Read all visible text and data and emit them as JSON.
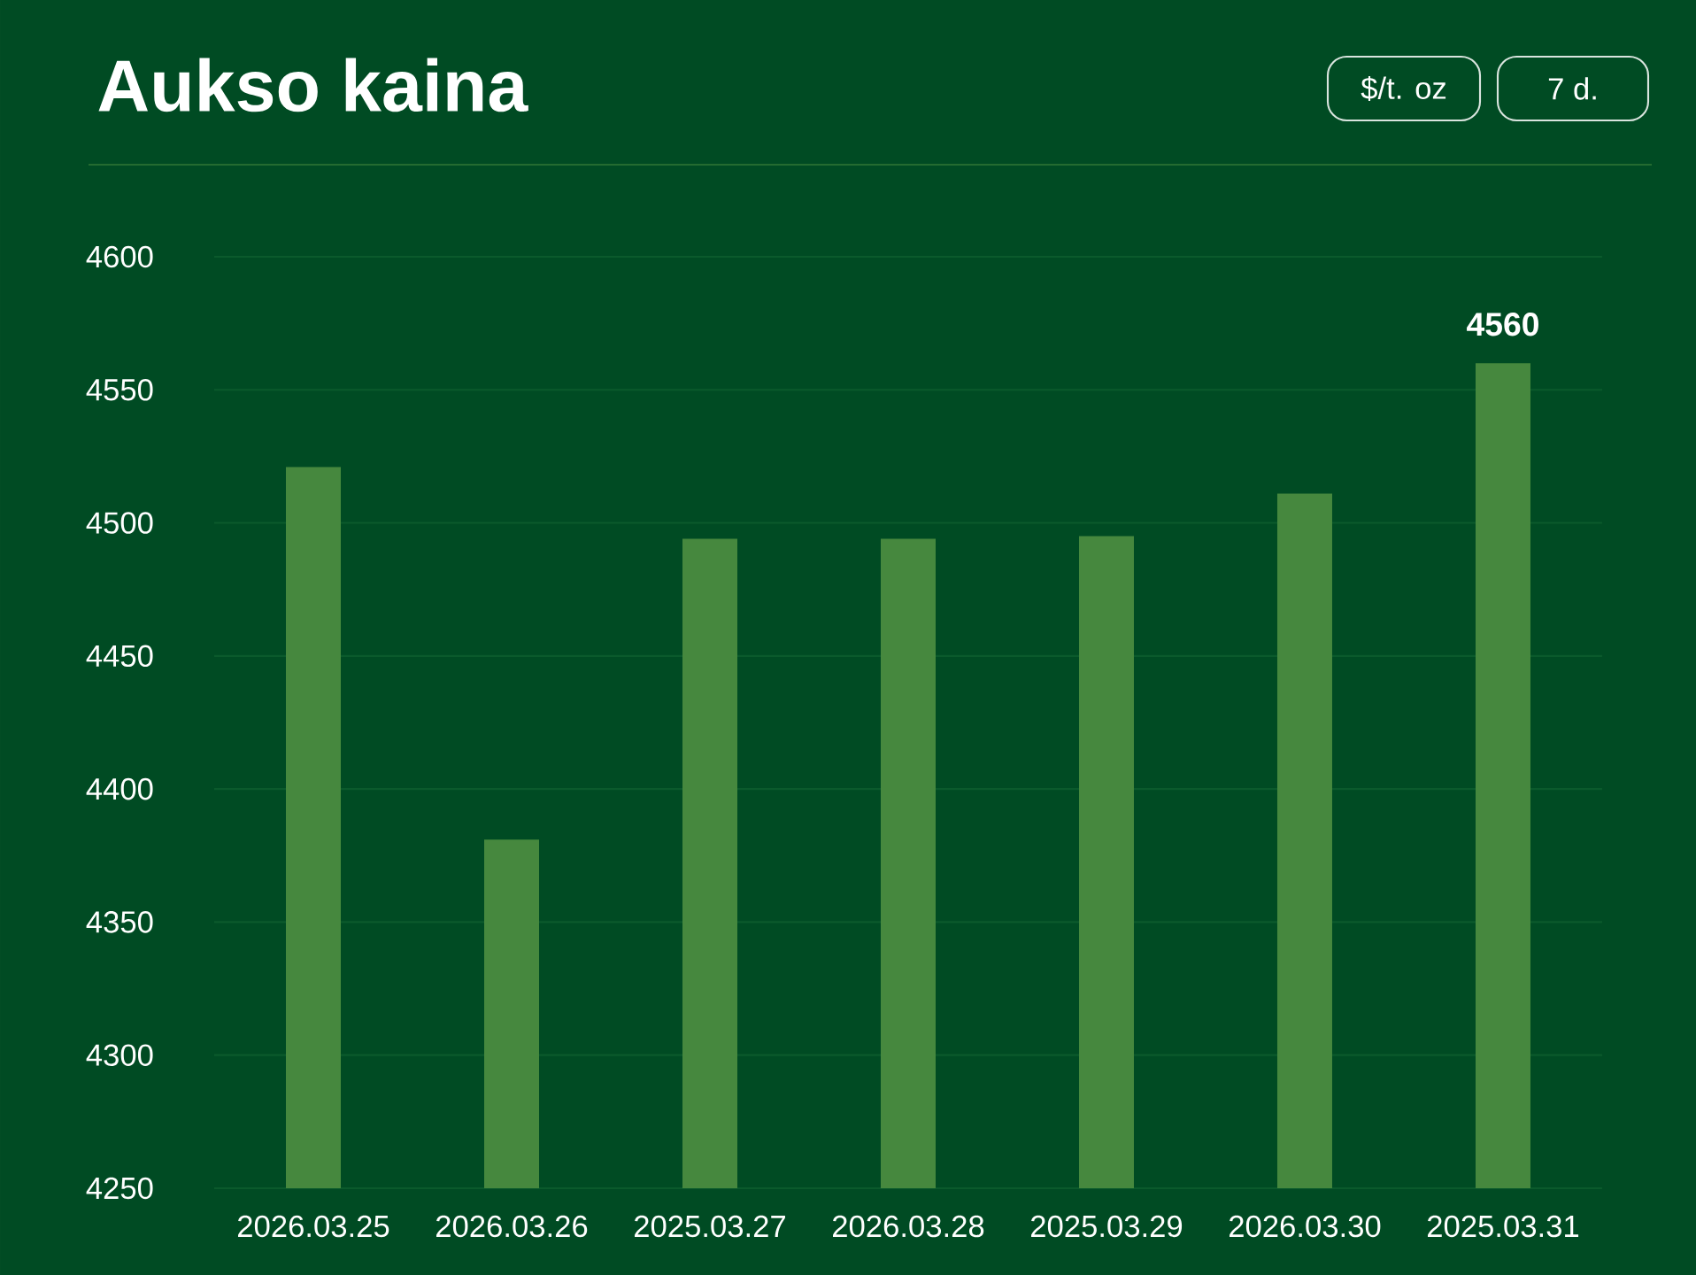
{
  "chart_data": {
    "type": "bar",
    "title": "Aukso kaina",
    "annotations": [
      "$/t. oz",
      "7 d."
    ],
    "categories": [
      "2026.03.25",
      "2026.03.26",
      "2025.03.27",
      "2026.03.28",
      "2025.03.29",
      "2026.03.30",
      "2025.03.31"
    ],
    "values": [
      4521,
      4381,
      4494,
      4494,
      4495,
      4511,
      4560
    ],
    "value_labels": [
      null,
      null,
      null,
      null,
      null,
      null,
      "4560"
    ],
    "color": "#46883e",
    "ylim": [
      4250,
      4600
    ],
    "yticks": [
      4250,
      4300,
      4350,
      4400,
      4450,
      4500,
      4550,
      4600
    ],
    "grid": "y"
  }
}
